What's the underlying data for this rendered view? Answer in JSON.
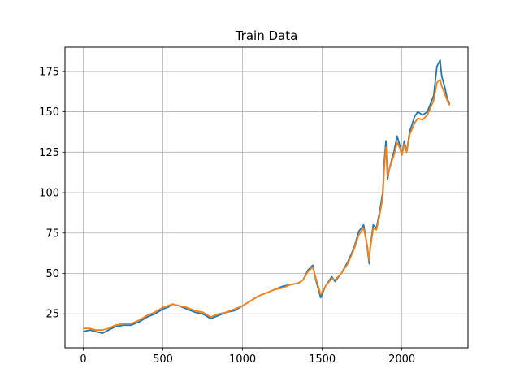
{
  "chart_data": {
    "type": "line",
    "title": "Train Data",
    "xlabel": "",
    "ylabel": "",
    "xlim": [
      -115,
      2415
    ],
    "ylim": [
      4,
      190
    ],
    "xticks": [
      0,
      500,
      1000,
      1500,
      2000
    ],
    "xtick_labels": [
      "0",
      "500",
      "1000",
      "1500",
      "2000"
    ],
    "yticks": [
      25,
      50,
      75,
      100,
      125,
      150,
      175
    ],
    "ytick_labels": [
      "25",
      "50",
      "75",
      "100",
      "125",
      "150",
      "175"
    ],
    "grid": true,
    "legend": null,
    "series": [
      {
        "color": "#1f77b4",
        "x": [
          0,
          40,
          80,
          120,
          160,
          200,
          250,
          300,
          350,
          400,
          450,
          500,
          530,
          560,
          600,
          650,
          700,
          750,
          800,
          850,
          900,
          950,
          1000,
          1050,
          1100,
          1150,
          1200,
          1250,
          1300,
          1350,
          1380,
          1410,
          1440,
          1460,
          1490,
          1520,
          1560,
          1580,
          1620,
          1660,
          1700,
          1730,
          1760,
          1780,
          1795,
          1800,
          1820,
          1840,
          1860,
          1880,
          1890,
          1900,
          1910,
          1920,
          1935,
          1950,
          1970,
          1990,
          2000,
          2015,
          2030,
          2050,
          2080,
          2100,
          2130,
          2160,
          2200,
          2220,
          2240,
          2250,
          2270,
          2285,
          2300
        ],
        "values": [
          14,
          15,
          14,
          13,
          15,
          17,
          18,
          18,
          20,
          23,
          25,
          28,
          29,
          31,
          30,
          28,
          26,
          25,
          22,
          24,
          26,
          27,
          30,
          33,
          36,
          38,
          40,
          42,
          43,
          44,
          46,
          52,
          55,
          46,
          35,
          42,
          48,
          45,
          50,
          57,
          66,
          76,
          80,
          68,
          56,
          65,
          80,
          78,
          88,
          100,
          120,
          132,
          108,
          114,
          120,
          125,
          135,
          128,
          123,
          132,
          125,
          138,
          147,
          150,
          148,
          150,
          160,
          178,
          182,
          172,
          165,
          158,
          155
        ]
      },
      {
        "color": "#ff7f0e",
        "x": [
          0,
          40,
          80,
          120,
          160,
          200,
          250,
          300,
          350,
          400,
          450,
          500,
          530,
          560,
          600,
          650,
          700,
          750,
          800,
          850,
          900,
          950,
          1000,
          1050,
          1100,
          1150,
          1200,
          1250,
          1300,
          1350,
          1380,
          1410,
          1440,
          1460,
          1490,
          1520,
          1560,
          1580,
          1620,
          1660,
          1700,
          1730,
          1760,
          1780,
          1795,
          1800,
          1820,
          1840,
          1860,
          1880,
          1890,
          1900,
          1910,
          1920,
          1935,
          1950,
          1970,
          1990,
          2000,
          2015,
          2030,
          2050,
          2080,
          2100,
          2130,
          2160,
          2200,
          2220,
          2240,
          2250,
          2270,
          2285,
          2300
        ],
        "values": [
          16,
          16,
          15,
          15,
          16,
          18,
          19,
          19,
          21,
          24,
          26,
          29,
          30,
          31,
          30,
          29,
          27,
          26,
          23,
          25,
          26,
          28,
          30,
          33,
          36,
          38,
          40,
          41,
          43,
          44,
          46,
          51,
          54,
          47,
          37,
          42,
          47,
          46,
          50,
          56,
          65,
          74,
          78,
          69,
          58,
          64,
          78,
          77,
          86,
          97,
          116,
          128,
          110,
          114,
          119,
          123,
          131,
          127,
          123,
          130,
          125,
          136,
          143,
          146,
          145,
          148,
          157,
          168,
          170,
          166,
          161,
          157,
          154
        ]
      }
    ]
  }
}
